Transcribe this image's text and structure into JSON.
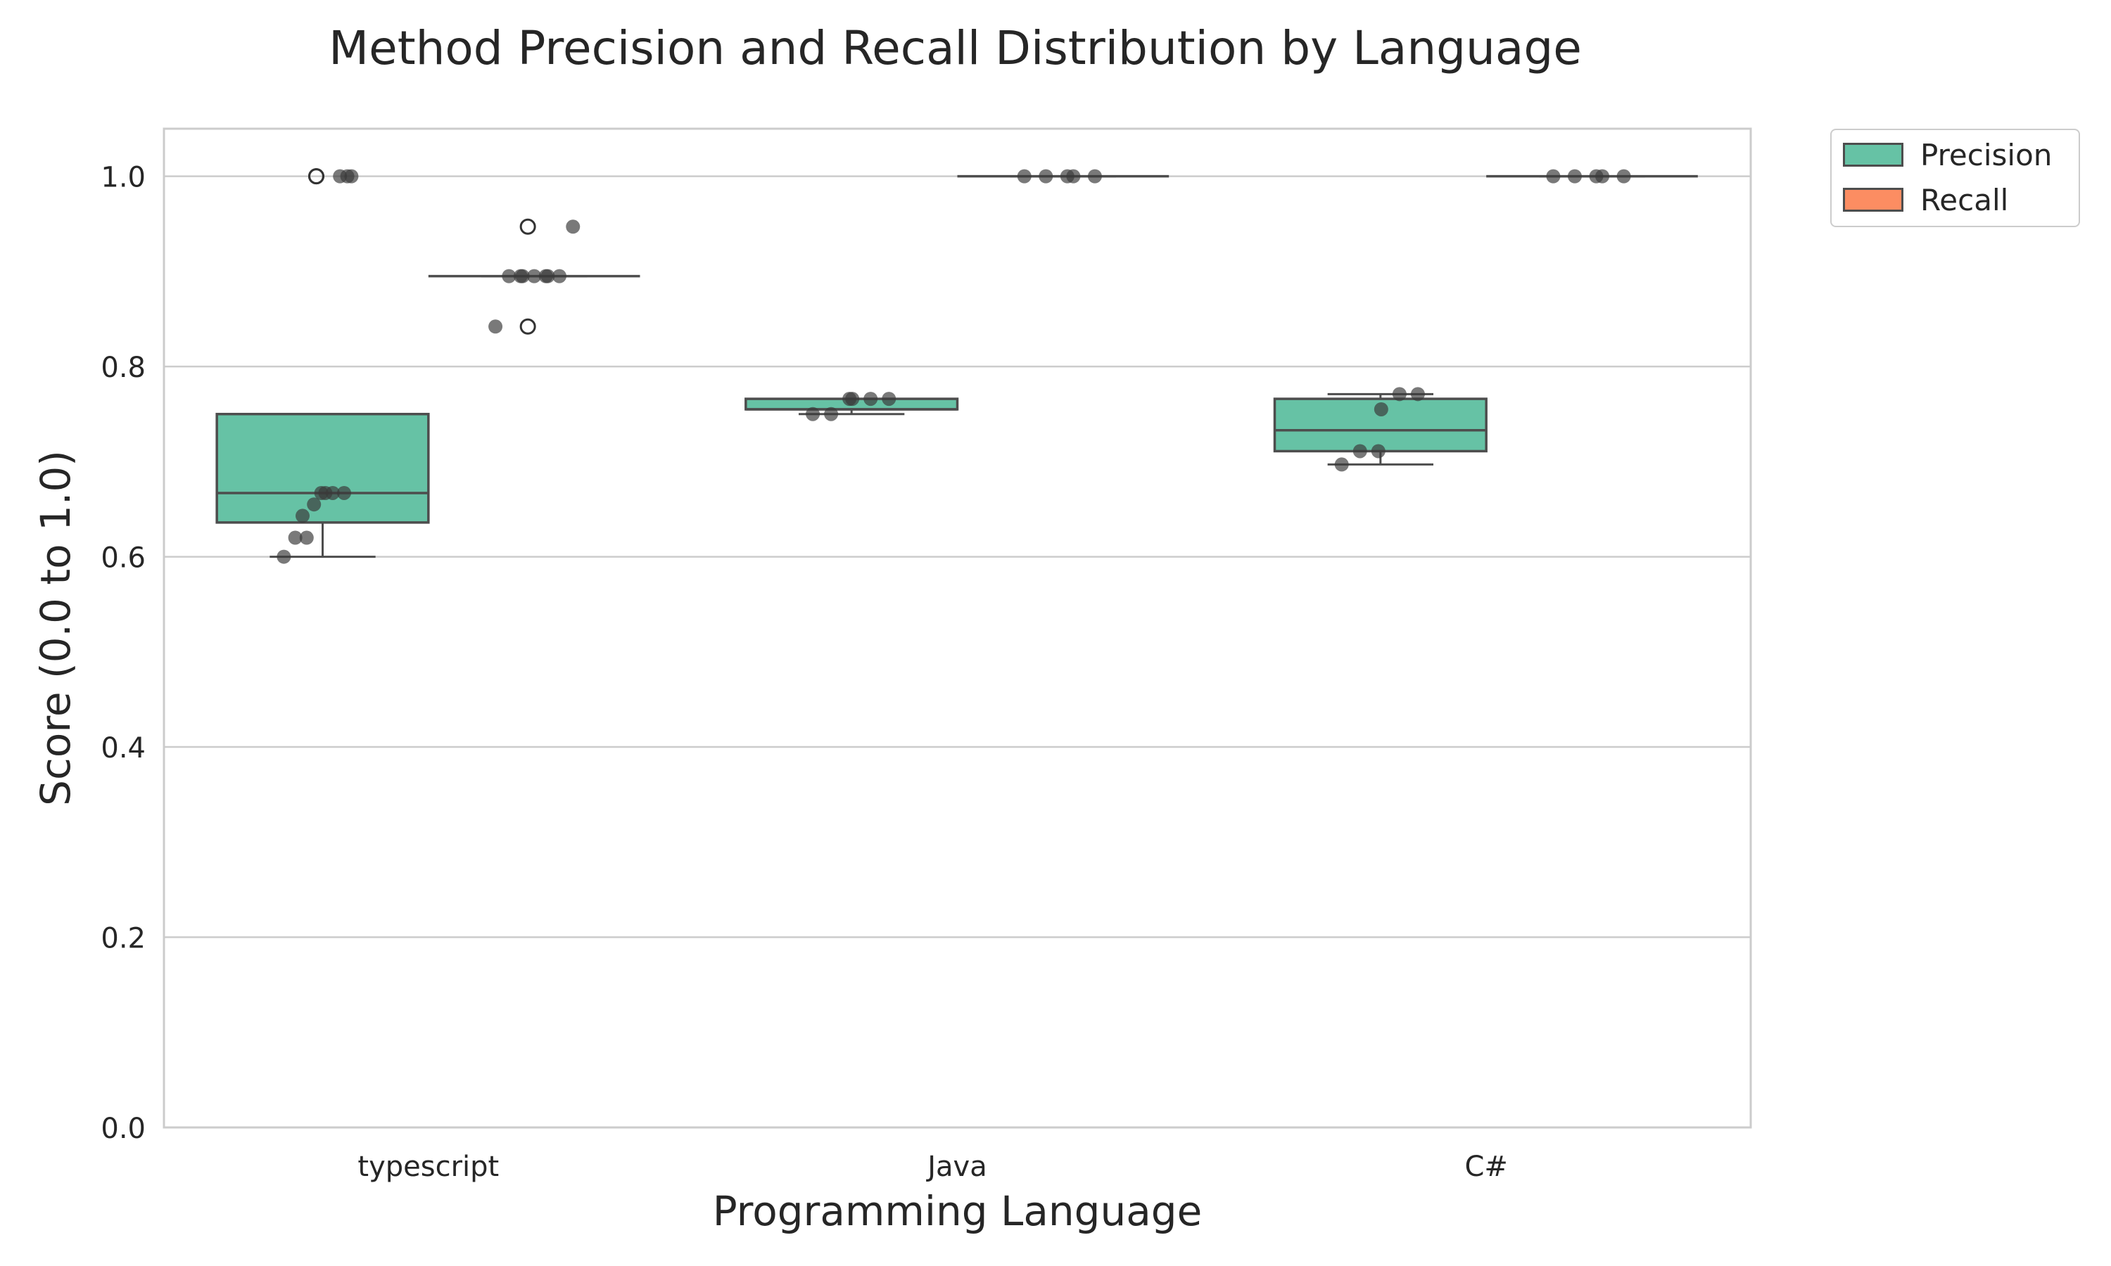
{
  "chart_data": {
    "type": "box",
    "title": "Method Precision and Recall Distribution by Language",
    "xlabel": "Programming Language",
    "ylabel": "Score (0.0 to 1.0)",
    "categories": [
      "typescript",
      "Java",
      "C#"
    ],
    "ylim": [
      0,
      1.05
    ],
    "yticks": [
      "0.0",
      "0.2",
      "0.4",
      "0.6",
      "0.8",
      "1.0"
    ],
    "grid": "horizontal",
    "legend_position": "outside top-right",
    "series": [
      {
        "name": "Precision",
        "color": "#66c2a5",
        "boxes": [
          {
            "q1": 0.636,
            "median": 0.667,
            "q3": 0.75,
            "whisker_low": 0.6,
            "whisker_high": 0.75,
            "outliers": [
              1.0,
              1.0
            ]
          },
          {
            "q1": 0.755,
            "median": 0.755,
            "q3": 0.766,
            "whisker_low": 0.75,
            "whisker_high": 0.766,
            "outliers": []
          },
          {
            "q1": 0.711,
            "median": 0.733,
            "q3": 0.766,
            "whisker_low": 0.697,
            "whisker_high": 0.771,
            "outliers": []
          }
        ],
        "points": [
          [
            0.6,
            0.62,
            0.62,
            0.643,
            0.655,
            0.667,
            0.667,
            0.667,
            0.667,
            1.0,
            1.0,
            1.0
          ],
          [
            0.75,
            0.75,
            0.766,
            0.766,
            0.766,
            0.766
          ],
          [
            0.697,
            0.711,
            0.711,
            0.755,
            0.771,
            0.771
          ]
        ]
      },
      {
        "name": "Recall",
        "color": "#fc8d62",
        "boxes": [
          {
            "q1": 0.895,
            "median": 0.895,
            "q3": 0.895,
            "whisker_low": 0.895,
            "whisker_high": 0.895,
            "outliers": [
              0.947,
              0.842
            ]
          },
          {
            "q1": 1.0,
            "median": 1.0,
            "q3": 1.0,
            "whisker_low": 1.0,
            "whisker_high": 1.0,
            "outliers": []
          },
          {
            "q1": 1.0,
            "median": 1.0,
            "q3": 1.0,
            "whisker_low": 1.0,
            "whisker_high": 1.0,
            "outliers": []
          }
        ],
        "points": [
          [
            0.842,
            0.895,
            0.895,
            0.895,
            0.895,
            0.895,
            0.895,
            0.895,
            0.947
          ],
          [
            1.0,
            1.0,
            1.0,
            1.0,
            1.0
          ],
          [
            1.0,
            1.0,
            1.0,
            1.0,
            1.0
          ]
        ]
      }
    ]
  }
}
